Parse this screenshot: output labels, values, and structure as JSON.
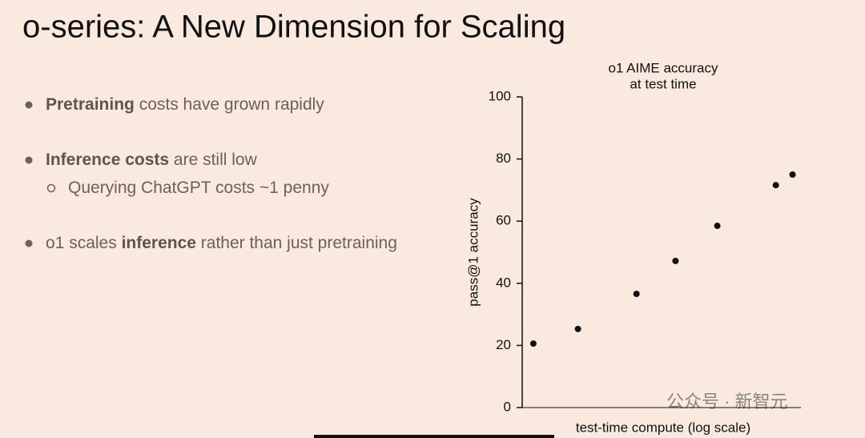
{
  "slide": {
    "title": "o-series: A New Dimension for Scaling",
    "bullets": [
      {
        "level": 1,
        "parts": [
          {
            "text": "Pretraining",
            "bold": true
          },
          {
            "text": " costs have grown rapidly",
            "bold": false
          }
        ]
      },
      {
        "level": 1,
        "parts": [
          {
            "text": "Inference costs",
            "bold": true
          },
          {
            "text": " are still low",
            "bold": false
          }
        ]
      },
      {
        "level": 2,
        "parts": [
          {
            "text": "Querying ChatGPT costs ~1 penny",
            "bold": false
          }
        ]
      },
      {
        "level": 1,
        "parts": [
          {
            "text": "o1 scales ",
            "bold": false
          },
          {
            "text": "inference",
            "bold": true
          },
          {
            "text": " rather than just pretraining",
            "bold": false
          }
        ]
      }
    ],
    "watermark": "公众号 · 新智元"
  },
  "chart_data": {
    "type": "scatter",
    "title": [
      "o1 AIME accuracy",
      "at test time"
    ],
    "x_label": "test-time compute (log scale)",
    "y_label": "pass@1 accuracy",
    "x": [
      4,
      20,
      41,
      55,
      70,
      91,
      97
    ],
    "values": [
      20.6,
      25.3,
      36.6,
      47.2,
      58.5,
      71.6,
      75
    ],
    "color": "#111111",
    "xlim": [
      0,
      100
    ],
    "ylim": [
      0,
      100
    ],
    "yticks": [
      0,
      20,
      40,
      60,
      80,
      100
    ],
    "grid": false
  }
}
